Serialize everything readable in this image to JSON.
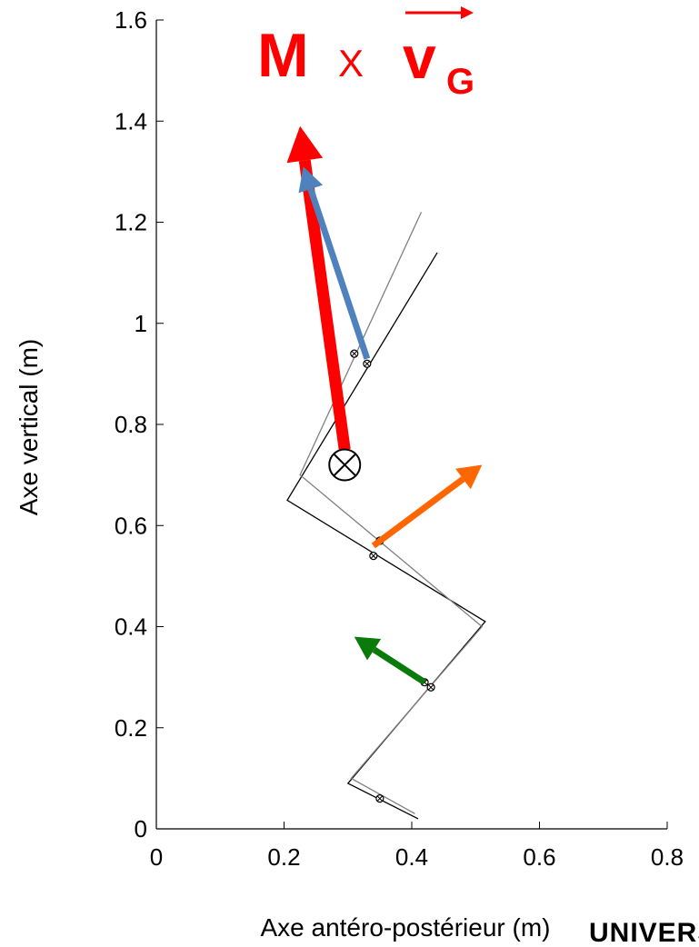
{
  "chart_data": {
    "type": "line",
    "xlabel": "Axe antéro-postérieur (m)",
    "ylabel": "Axe vertical (m)",
    "xlim": [
      0,
      0.8
    ],
    "ylim": [
      0,
      1.6
    ],
    "xticks": [
      "0",
      "0.2",
      "0.4",
      "0.6",
      "0.8"
    ],
    "yticks": [
      "0",
      "0.2",
      "0.4",
      "0.6",
      "0.8",
      "1",
      "1.2",
      "1.4",
      "1.6"
    ],
    "grid": false,
    "annotation": {
      "mass": "M",
      "times": "X",
      "vector": "v",
      "subscript": "G",
      "color": "#ff0000"
    },
    "series": [
      {
        "color": "#000000",
        "points": [
          [
            0.41,
            0.02
          ],
          [
            0.3,
            0.09
          ],
          [
            0.515,
            0.41
          ],
          [
            0.205,
            0.65
          ],
          [
            0.44,
            1.14
          ]
        ]
      },
      {
        "color": "#808080",
        "points": [
          [
            0.405,
            0.03
          ],
          [
            0.305,
            0.1
          ],
          [
            0.51,
            0.4
          ],
          [
            0.225,
            0.7
          ],
          [
            0.415,
            1.22
          ]
        ]
      }
    ],
    "joint_markers": [
      [
        0.35,
        0.06
      ],
      [
        0.43,
        0.28
      ],
      [
        0.42,
        0.29
      ],
      [
        0.34,
        0.54
      ],
      [
        0.35,
        0.57
      ],
      [
        0.33,
        0.92
      ],
      [
        0.31,
        0.94
      ]
    ],
    "center_of_mass": [
      0.295,
      0.72
    ],
    "vectors": [
      {
        "color": "#ff0000",
        "from": [
          0.295,
          0.75
        ],
        "to": [
          0.225,
          1.39
        ]
      },
      {
        "color": "#4f81bd",
        "from": [
          0.33,
          0.93
        ],
        "to": [
          0.23,
          1.31
        ]
      },
      {
        "color": "#ff6600",
        "from": [
          0.34,
          0.56
        ],
        "to": [
          0.51,
          0.72
        ]
      },
      {
        "color": "#0a7a0a",
        "from": [
          0.42,
          0.29
        ],
        "to": [
          0.31,
          0.38
        ]
      }
    ]
  },
  "logo": {
    "text": "UNIVERSITÉ RENNES"
  }
}
